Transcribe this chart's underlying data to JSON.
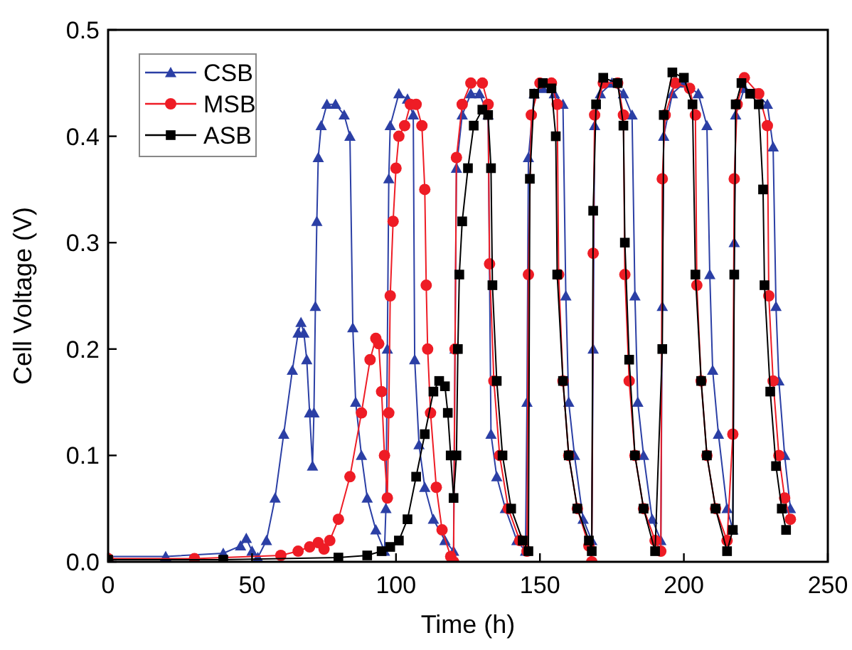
{
  "chart_data": {
    "type": "line",
    "xlabel": "Time (h)",
    "ylabel": "Cell Voltage (V)",
    "xlim": [
      0,
      250
    ],
    "ylim": [
      0,
      0.5
    ],
    "xticks": [
      0,
      50,
      100,
      150,
      200,
      250
    ],
    "yticks": [
      {
        "value": 0,
        "label": "0.0"
      },
      {
        "value": 0.1,
        "label": "0.1"
      },
      {
        "value": 0.2,
        "label": "0.2"
      },
      {
        "value": 0.3,
        "label": "0.3"
      },
      {
        "value": 0.4,
        "label": "0.4"
      },
      {
        "value": 0.5,
        "label": "0.5"
      }
    ],
    "legend": "top left",
    "line_style": "solid",
    "series": [
      {
        "name": "CSB",
        "color": "#2b3fa5",
        "marker": "triangle",
        "x": [
          0,
          20,
          40,
          46,
          48,
          50,
          52,
          55,
          58,
          61,
          64,
          66,
          67,
          68,
          69,
          70,
          71,
          71.5,
          72,
          72.5,
          73,
          74,
          76,
          79,
          82,
          84,
          85,
          86,
          88,
          90,
          93,
          96,
          96.5,
          97,
          97.5,
          98,
          101,
          104,
          106,
          106.5,
          108,
          110,
          113,
          117,
          120,
          120.5,
          121,
          123,
          126,
          129,
          132,
          133,
          135,
          138,
          142,
          145,
          145.5,
          146,
          148,
          151,
          155,
          158,
          159,
          160,
          162,
          165,
          168,
          168.5,
          169,
          171,
          175,
          179,
          182,
          183,
          184,
          186,
          189,
          192,
          192.5,
          193,
          196,
          200,
          205,
          208,
          209,
          210,
          212,
          215,
          217,
          217.5,
          218,
          221,
          225,
          229,
          231,
          232,
          233,
          235,
          237
        ],
        "values": [
          0.005,
          0.005,
          0.008,
          0.015,
          0.022,
          0.01,
          0.004,
          0.02,
          0.06,
          0.12,
          0.18,
          0.215,
          0.225,
          0.215,
          0.19,
          0.14,
          0.09,
          0.14,
          0.24,
          0.32,
          0.38,
          0.41,
          0.43,
          0.43,
          0.42,
          0.4,
          0.22,
          0.15,
          0.1,
          0.06,
          0.03,
          0.01,
          0.05,
          0.2,
          0.36,
          0.41,
          0.44,
          0.435,
          0.42,
          0.19,
          0.11,
          0.07,
          0.04,
          0.02,
          0.01,
          0.2,
          0.37,
          0.42,
          0.44,
          0.44,
          0.42,
          0.12,
          0.08,
          0.05,
          0.02,
          0.01,
          0.15,
          0.38,
          0.44,
          0.445,
          0.44,
          0.43,
          0.25,
          0.15,
          0.1,
          0.04,
          0.02,
          0.2,
          0.41,
          0.44,
          0.45,
          0.44,
          0.42,
          0.25,
          0.15,
          0.1,
          0.04,
          0.02,
          0.24,
          0.4,
          0.44,
          0.45,
          0.44,
          0.41,
          0.27,
          0.18,
          0.12,
          0.05,
          0.03,
          0.3,
          0.42,
          0.445,
          0.44,
          0.43,
          0.39,
          0.24,
          0.17,
          0.1,
          0.05
        ]
      },
      {
        "name": "MSB",
        "color": "#ee1c25",
        "marker": "circle",
        "x": [
          0,
          30,
          60,
          66,
          70,
          73,
          75,
          77,
          80,
          84,
          88,
          91,
          93,
          94,
          95,
          96,
          97,
          97.5,
          98,
          99,
          100,
          101,
          103,
          105,
          107,
          109,
          110,
          110.5,
          111,
          112,
          114,
          116,
          119,
          120,
          120.5,
          121,
          123,
          126,
          130,
          132,
          132.5,
          134,
          136,
          139,
          143,
          145.5,
          146,
          147,
          150,
          154,
          156,
          156.5,
          158,
          160,
          163,
          167,
          168,
          168.5,
          169,
          172,
          177,
          179,
          179.5,
          181,
          183,
          186,
          190,
          192,
          192.5,
          193.5,
          197,
          202,
          204,
          204.5,
          206,
          208,
          211,
          215,
          217,
          217.5,
          218.5,
          221,
          226,
          229,
          229.5,
          231,
          233,
          235,
          237
        ],
        "values": [
          0.003,
          0.003,
          0.006,
          0.01,
          0.014,
          0.018,
          0.012,
          0.02,
          0.04,
          0.08,
          0.14,
          0.19,
          0.21,
          0.205,
          0.16,
          0.1,
          0.06,
          0.14,
          0.25,
          0.32,
          0.37,
          0.4,
          0.41,
          0.43,
          0.43,
          0.41,
          0.35,
          0.26,
          0.2,
          0.14,
          0.07,
          0.03,
          0.005,
          0,
          0.2,
          0.38,
          0.43,
          0.45,
          0.45,
          0.43,
          0.28,
          0.17,
          0.1,
          0.05,
          0.02,
          0.01,
          0.27,
          0.42,
          0.45,
          0.45,
          0.43,
          0.27,
          0.17,
          0.1,
          0.05,
          0.015,
          0,
          0.29,
          0.42,
          0.45,
          0.45,
          0.42,
          0.27,
          0.17,
          0.1,
          0.05,
          0.02,
          0.01,
          0.36,
          0.42,
          0.45,
          0.445,
          0.42,
          0.26,
          0.17,
          0.1,
          0.05,
          0.02,
          0.12,
          0.36,
          0.43,
          0.455,
          0.44,
          0.41,
          0.25,
          0.17,
          0.1,
          0.06,
          0.04
        ]
      },
      {
        "name": "ASB",
        "color": "#000000",
        "marker": "square",
        "x": [
          0,
          40,
          80,
          90,
          95,
          98,
          101,
          104,
          107,
          110,
          113,
          115,
          117,
          118,
          119,
          120,
          121,
          121.5,
          122,
          123,
          125,
          127,
          130,
          132,
          133,
          133.5,
          135,
          137,
          140,
          144,
          146,
          146.5,
          148,
          151,
          154,
          155.5,
          156,
          158,
          160,
          163,
          167,
          168,
          168.5,
          169.5,
          172,
          177,
          179,
          179.5,
          181,
          183,
          186,
          190,
          192.5,
          193,
          196,
          200,
          203,
          204,
          206,
          208,
          211,
          215,
          217,
          217.5,
          218,
          220,
          223,
          226,
          227.5,
          228,
          230,
          232,
          234,
          235.5
        ],
        "values": [
          0.002,
          0.002,
          0.004,
          0.006,
          0.01,
          0.014,
          0.02,
          0.04,
          0.08,
          0.12,
          0.16,
          0.17,
          0.165,
          0.14,
          0.1,
          0.06,
          0.1,
          0.2,
          0.27,
          0.32,
          0.37,
          0.41,
          0.425,
          0.42,
          0.37,
          0.26,
          0.17,
          0.1,
          0.05,
          0.02,
          0.01,
          0.36,
          0.44,
          0.45,
          0.445,
          0.4,
          0.27,
          0.17,
          0.1,
          0.05,
          0.02,
          0.01,
          0.33,
          0.43,
          0.455,
          0.45,
          0.41,
          0.3,
          0.19,
          0.1,
          0.05,
          0.01,
          0.2,
          0.42,
          0.46,
          0.455,
          0.43,
          0.27,
          0.17,
          0.1,
          0.05,
          0.01,
          0.03,
          0.27,
          0.43,
          0.45,
          0.44,
          0.43,
          0.35,
          0.26,
          0.16,
          0.09,
          0.05,
          0.03
        ]
      }
    ]
  }
}
